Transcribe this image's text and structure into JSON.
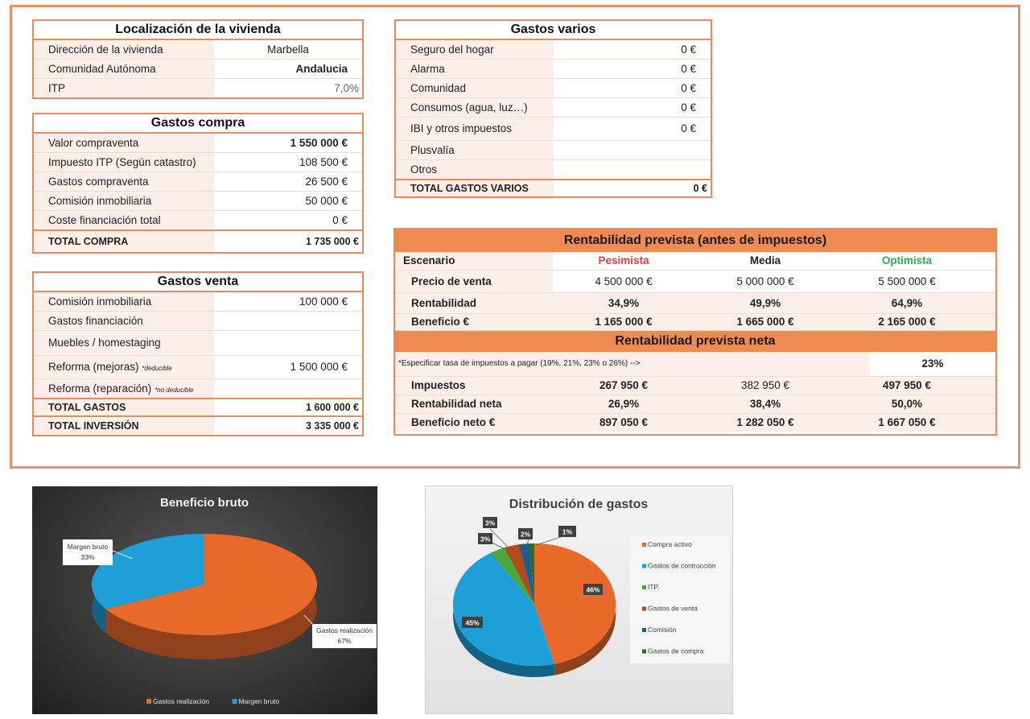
{
  "localizacion": {
    "title": "Localización de la vivienda",
    "rows": [
      {
        "label": "Dirección de la vivienda",
        "value": "Marbella"
      },
      {
        "label": "Comunidad Autónoma",
        "value": "Andalucia"
      },
      {
        "label": "ITP",
        "value": "7,0%"
      }
    ]
  },
  "gastos_compra": {
    "title": "Gastos compra",
    "rows": [
      {
        "label": "Valor compraventa",
        "value": "1 550 000 €"
      },
      {
        "label": "Impuesto ITP (Según catastro)",
        "value": "108 500 €"
      },
      {
        "label": "Gastos compraventa",
        "value": "26 500 €"
      },
      {
        "label": "Comisión inmobiliaria",
        "value": "50 000 €"
      },
      {
        "label": "Coste financiación total",
        "value": "0 €"
      }
    ],
    "total_label": "TOTAL COMPRA",
    "total_value": "1 735 000 €"
  },
  "gastos_venta": {
    "title": "Gastos venta",
    "rows": [
      {
        "label": "Comisión inmobiliaria",
        "value": "100 000 €"
      },
      {
        "label": "Gastos financiación",
        "value": ""
      },
      {
        "label": "Muebles / homestaging",
        "value": ""
      },
      {
        "label": "Reforma (mejoras)",
        "note": "*deducible",
        "value": "1 500 000 €"
      },
      {
        "label": "Reforma (reparación)",
        "note": "*no deducible",
        "value": ""
      }
    ],
    "total_label": "TOTAL GASTOS",
    "total_value": "1 600 000 €",
    "inversion_label": "TOTAL INVERSIÓN",
    "inversion_value": "3 335 000 €"
  },
  "gastos_varios": {
    "title": "Gastos varios",
    "rows": [
      {
        "label": "Seguro del hogar",
        "value": "0 €"
      },
      {
        "label": "Alarma",
        "value": "0 €"
      },
      {
        "label": "Comunidad",
        "value": "0 €"
      },
      {
        "label": "Consumos (agua, luz…)",
        "value": "0 €"
      },
      {
        "label": "IBI y otros impuestos",
        "value": "0 €"
      },
      {
        "label": "Plusvalía",
        "value": ""
      },
      {
        "label": "Otros",
        "value": ""
      }
    ],
    "total_label": "TOTAL GASTOS VARIOS",
    "total_value": "0 €"
  },
  "rentabilidad": {
    "title": "Rentabilidad prevista (antes de impuestos)",
    "header": [
      "Escenario",
      "Pesimista",
      "Media",
      "Optimista"
    ],
    "rows": [
      {
        "label": "Precio de venta",
        "values": [
          "4 500 000 €",
          "5 000 000 €",
          "5 500 000 €"
        ]
      },
      {
        "label": "Rentabilidad",
        "values": [
          "34,9%",
          "49,9%",
          "64,9%"
        ]
      },
      {
        "label": "Beneficio €",
        "values": [
          "1 165 000 €",
          "1 665 000 €",
          "2 165 000 €"
        ]
      }
    ],
    "neta_title": "Rentabilidad prevista neta",
    "tasa_label": "*Especificar tasa de impuestos a pagar (19%, 21%, 23% o 26%) -->",
    "tasa_value": "23%",
    "neta_rows": [
      {
        "label": "Impuestos",
        "values": [
          "267 950 €",
          "382 950 €",
          "497 950 €"
        ]
      },
      {
        "label": "Rentabilidad neta",
        "values": [
          "26,9%",
          "38,4%",
          "50,0%"
        ]
      },
      {
        "label": "Beneficio neto €",
        "values": [
          "897 050 €",
          "1 282 050 €",
          "1 667 050 €"
        ]
      }
    ]
  },
  "colors": {
    "accent_border": "#ee8a5a",
    "label_bg": "#fcefe9",
    "pesimista": "#e33e3e",
    "optimista": "#2fae4a",
    "pie_orange": "#e8692a",
    "pie_blue": "#1f9fd8"
  },
  "chart_data": [
    {
      "type": "pie",
      "title": "Beneficio bruto",
      "categories": [
        "Gastos realización",
        "Margen bruto"
      ],
      "values": [
        67,
        33
      ],
      "data_labels": [
        "Gastos realización\n67%",
        "Margen bruto\n33%"
      ],
      "legend": "bottom",
      "colors": [
        "#e8692a",
        "#1f9fd8"
      ]
    },
    {
      "type": "pie",
      "title": "Distribución de gastos",
      "categories": [
        "Compra activo",
        "Gastos de contrucción",
        "ITP.",
        "Gastos de venta",
        "Comisión",
        "Gastos de compra"
      ],
      "values": [
        46,
        45,
        3,
        3,
        2,
        1
      ],
      "data_labels": [
        "46%",
        "45%",
        "3%",
        "3%",
        "2%",
        "1%"
      ],
      "legend": "right",
      "colors": [
        "#e8692a",
        "#1f9fd8",
        "#4aa83a",
        "#b24a1c",
        "#1c5f8c",
        "#2d6e2a"
      ]
    }
  ]
}
